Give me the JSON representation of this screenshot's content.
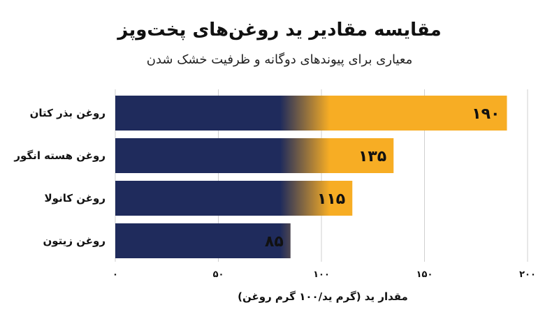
{
  "title": "مقایسه مقادیر ید روغن‌های پخت‌وپز",
  "subtitle": "معیاری برای پیوندهای دوگانه و ظرفیت خشک شدن",
  "colors": {
    "bar_start": "#1f2b5c",
    "bar_end": "#f7ad24",
    "grid": "#cfcfcf"
  },
  "chart_data": {
    "type": "bar",
    "orientation": "horizontal",
    "categories": [
      "روغن بذر کتان",
      "روغن هسته انگور",
      "روغن کانولا",
      "روغن زیتون"
    ],
    "values": [
      190,
      135,
      115,
      85
    ],
    "value_labels": [
      "۱۹۰",
      "۱۳۵",
      "۱۱۵",
      "۸۵"
    ],
    "xlim": [
      0,
      200
    ],
    "xticks": [
      0,
      50,
      100,
      150,
      200
    ],
    "xtick_labels": [
      "۰",
      "۵۰",
      "۱۰۰",
      "۱۵۰",
      "۲۰۰"
    ],
    "xlabel": "مقدار ید (گرم ید/۱۰۰ گرم روغن)",
    "grid": true
  }
}
